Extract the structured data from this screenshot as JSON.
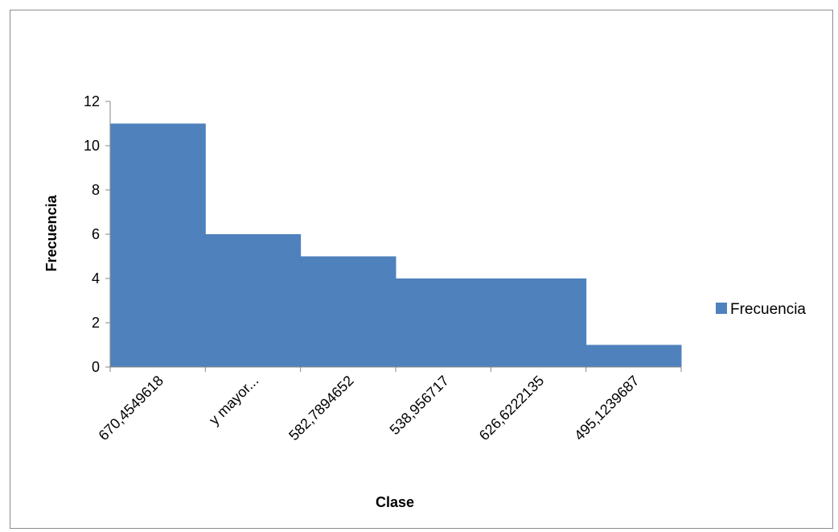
{
  "chart_data": {
    "type": "bar",
    "categories": [
      "670,4549618",
      "y mayor...",
      "582,7894652",
      "538,956717",
      "626,6222135",
      "495,1239687"
    ],
    "series": [
      {
        "name": "Frecuencia",
        "values": [
          11,
          6,
          5,
          4,
          4,
          1
        ],
        "color": "#4f81bd"
      }
    ],
    "title": "",
    "xlabel": "Clase",
    "ylabel": "Frecuencia",
    "ylim": [
      0,
      12
    ],
    "yticks": [
      0,
      2,
      4,
      6,
      8,
      10,
      12
    ],
    "grid": false,
    "legend": "right",
    "bar_gap": 0
  }
}
